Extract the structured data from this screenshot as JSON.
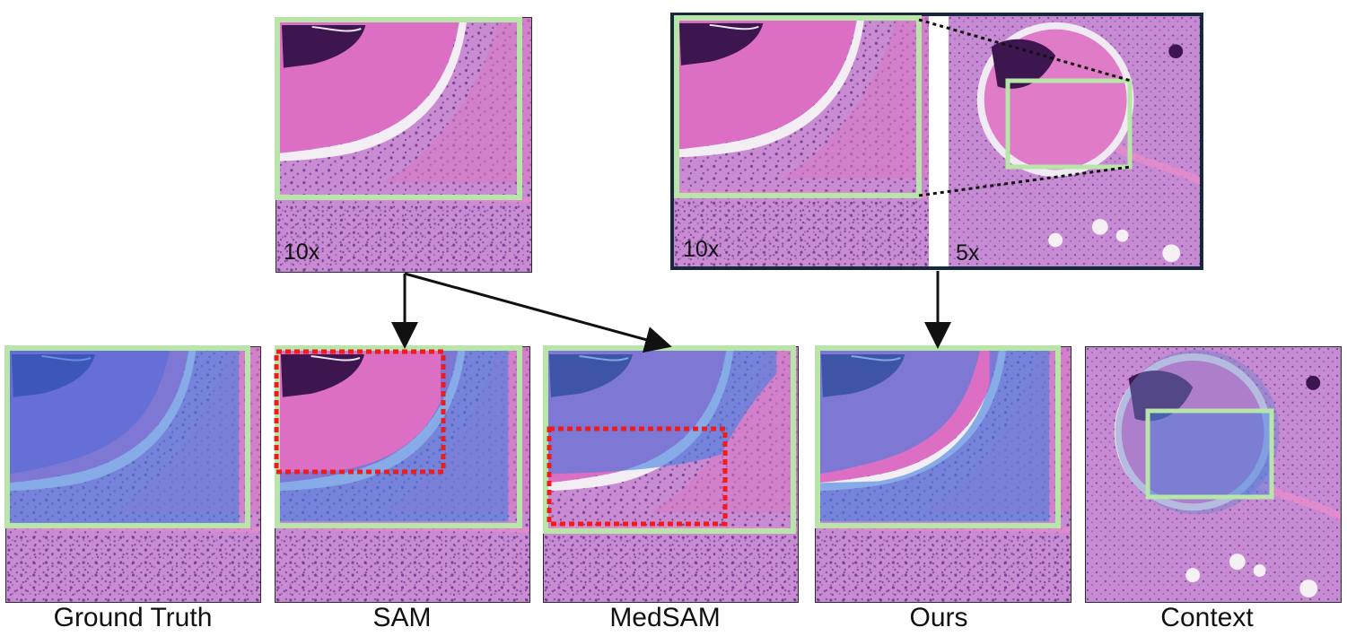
{
  "magnifications": {
    "top_left": "10x",
    "top_right_left": "10x",
    "top_right_right": "5x"
  },
  "captions": {
    "ground_truth": "Ground Truth",
    "sam": "SAM",
    "medsam": "MedSAM",
    "ours": "Ours",
    "context": "Context"
  },
  "colors": {
    "tissue_pink": "#e27fc0",
    "tissue_purple": "#a66fb5",
    "lumen_pink": "#dc6fc4",
    "necrosis_dark": "#3d1650",
    "mask_blue": "#3f7fe0",
    "box_green": "#b8e6a8",
    "box_red": "#ee1c1c",
    "frame_navy": "#16283c"
  }
}
